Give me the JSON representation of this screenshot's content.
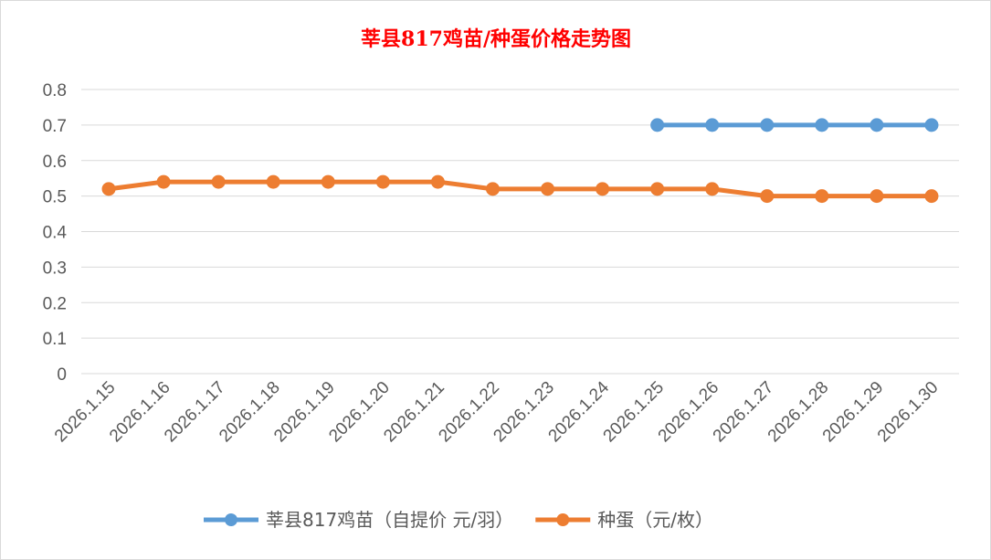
{
  "chart_data": {
    "type": "line",
    "title": "莘县817鸡苗/种蛋价格走势图",
    "xlabel": "",
    "ylabel": "",
    "categories": [
      "2026.1.15",
      "2026.1.16",
      "2026.1.17",
      "2026.1.18",
      "2026.1.19",
      "2026.1.20",
      "2026.1.21",
      "2026.1.22",
      "2026.1.23",
      "2026.1.24",
      "2026.1.25",
      "2026.1.26",
      "2026.1.27",
      "2026.1.28",
      "2026.1.29",
      "2026.1.30"
    ],
    "ylim": [
      0,
      0.8
    ],
    "yticks": [
      "0",
      "0.1",
      "0.2",
      "0.3",
      "0.4",
      "0.5",
      "0.6",
      "0.7",
      "0.8"
    ],
    "grid": true,
    "legend_position": "bottom",
    "series": [
      {
        "name": "莘县817鸡苗（自提价 元/羽）",
        "color": "#5B9BD5",
        "values": [
          null,
          null,
          null,
          null,
          null,
          null,
          null,
          null,
          null,
          null,
          0.7,
          0.7,
          0.7,
          0.7,
          0.7,
          0.7
        ]
      },
      {
        "name": "种蛋（元/枚）",
        "color": "#ED7D31",
        "values": [
          0.52,
          0.54,
          0.54,
          0.54,
          0.54,
          0.54,
          0.54,
          0.52,
          0.52,
          0.52,
          0.52,
          0.52,
          0.5,
          0.5,
          0.5,
          0.5
        ]
      }
    ],
    "title_color": "#FF0000"
  }
}
